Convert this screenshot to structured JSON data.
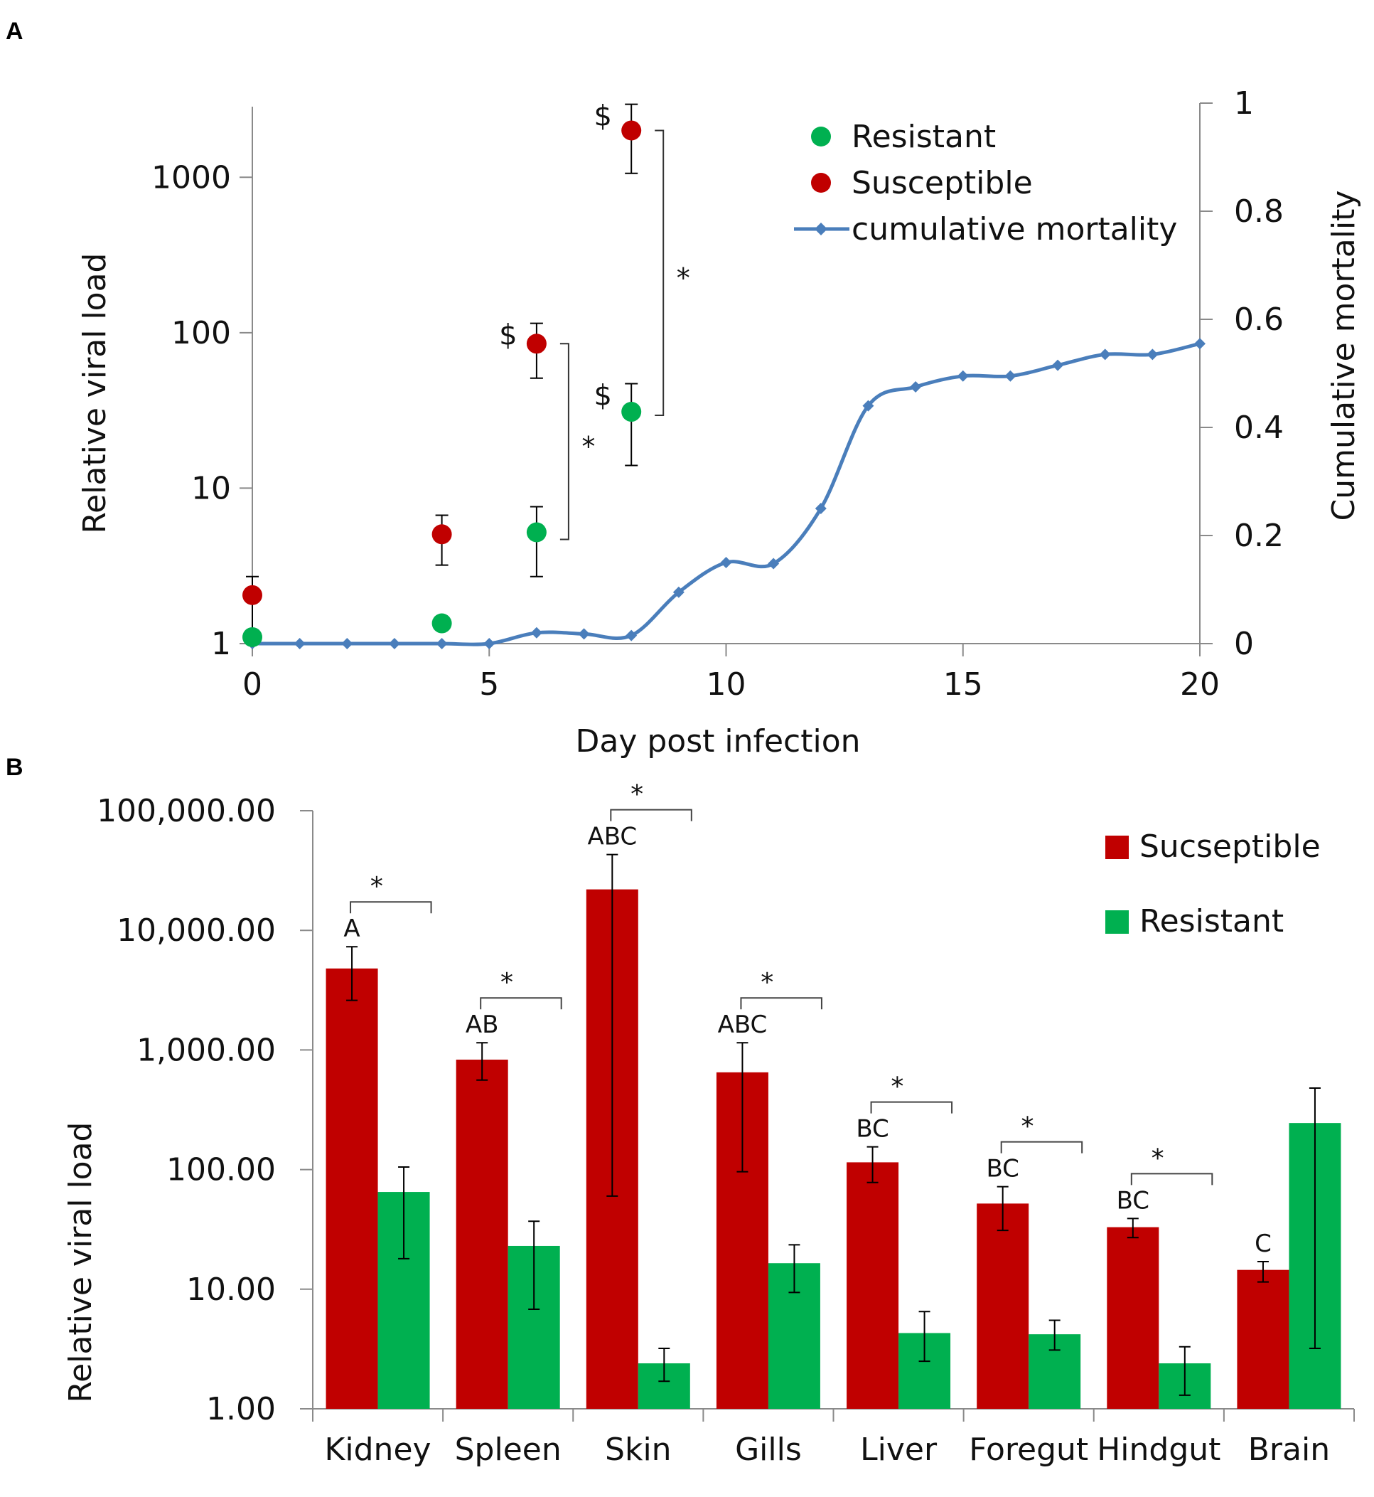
{
  "chart_data": [
    {
      "panel": "A",
      "type": "scatter",
      "xlabel": "Day post infection",
      "ylabel": "Relative viral load",
      "y2label": "Cumulative mortality",
      "x_range": [
        0,
        20
      ],
      "x_ticks": [
        "0",
        "5",
        "10",
        "15",
        "20"
      ],
      "y_scale": "log",
      "y_range": [
        1,
        3000
      ],
      "y_ticks": [
        "1",
        "10",
        "100",
        "1000"
      ],
      "y2_range": [
        0,
        1
      ],
      "y2_ticks": [
        "0",
        "0.2",
        "0.4",
        "0.6",
        "0.8",
        "1"
      ],
      "legend": {
        "position": "top-right",
        "entries": [
          "Resistant",
          "Susceptible",
          "cumulative mortality"
        ]
      },
      "colors": {
        "resistant": "#00b050",
        "susceptible": "#c00000",
        "mortality": "#4a7ebb"
      },
      "series": [
        {
          "name": "Resistant",
          "points": [
            {
              "x": 0,
              "y": 1.1,
              "err_low": 1.0,
              "err_high": 1.1
            },
            {
              "x": 4,
              "y": 1.35,
              "err_low": 1.35,
              "err_high": 1.35
            },
            {
              "x": 6,
              "y": 5.2,
              "err_low": 2.7,
              "err_high": 7.6,
              "marker": ""
            },
            {
              "x": 8,
              "y": 31,
              "err_low": 14,
              "err_high": 47,
              "marker": "$"
            }
          ]
        },
        {
          "name": "Susceptible",
          "points": [
            {
              "x": 0,
              "y": 2.05,
              "err_low": 1.05,
              "err_high": 2.7
            },
            {
              "x": 4,
              "y": 5.05,
              "err_low": 3.2,
              "err_high": 6.7
            },
            {
              "x": 6,
              "y": 85,
              "err_low": 51,
              "err_high": 115,
              "marker": "$"
            },
            {
              "x": 8,
              "y": 2000,
              "err_low": 1060,
              "err_high": 2950,
              "marker": "$"
            }
          ]
        },
        {
          "name": "cumulative mortality",
          "axis": "right",
          "x": [
            0,
            1,
            2,
            3,
            4,
            5,
            6,
            7,
            8,
            9,
            10,
            11,
            12,
            13,
            14,
            15,
            16,
            17,
            18,
            19,
            20
          ],
          "values": [
            0,
            0,
            0,
            0,
            0,
            0,
            0.02,
            0.018,
            0.015,
            0.095,
            0.15,
            0.148,
            0.25,
            0.44,
            0.475,
            0.495,
            0.495,
            0.515,
            0.535,
            0.535,
            0.555
          ]
        }
      ],
      "significance": [
        {
          "day": 6,
          "label": "*"
        },
        {
          "day": 8,
          "label": "*"
        }
      ]
    },
    {
      "panel": "B",
      "type": "bar",
      "ylabel": "Relative viral load",
      "y_scale": "log",
      "y_range": [
        1,
        100000
      ],
      "y_ticks": [
        "1.00",
        "10.00",
        "100.00",
        "1,000.00",
        "10,000.00",
        "100,000.00"
      ],
      "categories": [
        "Kidney",
        "Spleen",
        "Skin",
        "Gills",
        "Liver",
        "Foregut",
        "Hindgut",
        "Brain"
      ],
      "legend": {
        "position": "top-right",
        "entries": [
          "Sucseptible",
          "Resistant"
        ]
      },
      "colors": {
        "susceptible": "#c00000",
        "resistant": "#00b050"
      },
      "series": [
        {
          "name": "Sucseptible",
          "values": [
            4800,
            830,
            22000,
            650,
            115,
            52,
            33,
            14.5
          ],
          "err_low": [
            2600,
            560,
            60,
            96,
            78,
            31,
            27,
            11.5
          ],
          "err_high": [
            7300,
            1150,
            43000,
            1150,
            155,
            72,
            39,
            17
          ]
        },
        {
          "name": "Resistant",
          "values": [
            65,
            23,
            2.4,
            16.5,
            4.3,
            4.2,
            2.4,
            245
          ],
          "err_low": [
            18,
            6.8,
            1.7,
            9.4,
            2.5,
            3.1,
            1.3,
            3.2
          ],
          "err_high": [
            105,
            37,
            3.2,
            23.5,
            6.5,
            5.5,
            3.3,
            480
          ]
        }
      ],
      "group_letters": [
        "A",
        "AB",
        "ABC",
        "ABC",
        "BC",
        "BC",
        "BC",
        "C"
      ],
      "significance": [
        "*",
        "*",
        "*",
        "*",
        "*",
        "*",
        "*",
        ""
      ]
    }
  ]
}
